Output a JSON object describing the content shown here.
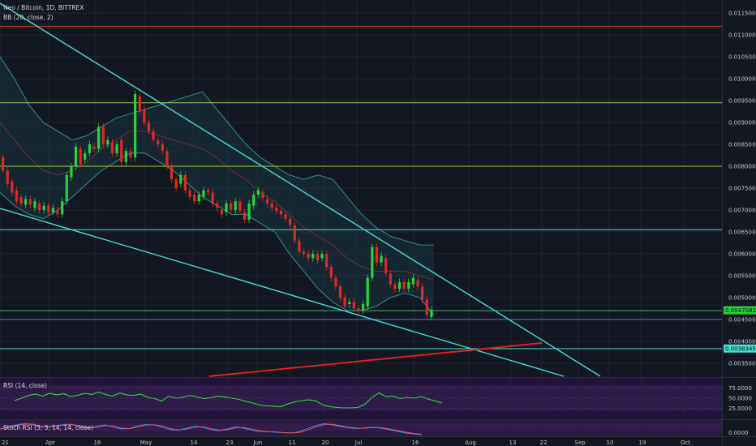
{
  "header": {
    "symbol": "Neo / Bitcoin, 1D, BITTREX",
    "bb": "BB (20, close, 2)",
    "rsi": "RSI (14, close)",
    "stoch": "Stoch RSI (3, 3, 14, 14, close)"
  },
  "chart_data": {
    "type": "candlestick",
    "price_axis": {
      "ticks": [
        "0.01150000",
        "0.01100000",
        "0.01050000",
        "0.01000000",
        "0.00950000",
        "0.00900000",
        "0.00850000",
        "0.00800000",
        "0.00750000",
        "0.00700000",
        "0.00650000",
        "0.00600000",
        "0.00550000",
        "0.00500000",
        "0.00450000",
        "0.00400000",
        "0.00350000"
      ],
      "range": [
        0.0032,
        0.0118
      ]
    },
    "last_price_label": "0.00470820",
    "support_label": "0.00383457",
    "rsi_axis": {
      "ticks": [
        "75.0000",
        "50.0000",
        "25.0000"
      ]
    },
    "stoch_axis": {
      "ticks": [
        "0.0000"
      ]
    },
    "x_axis_labels": [
      "21",
      "Apr",
      "16",
      "May",
      "14",
      "23",
      "Jun",
      "11",
      "20",
      "Jul",
      "16",
      "Aug",
      "13",
      "22",
      "Sep",
      "10",
      "19",
      "Oct"
    ],
    "horizontal_levels": [
      {
        "price": 0.0112,
        "color": "#e03030"
      },
      {
        "price": 0.00945,
        "color": "#9acd32"
      },
      {
        "price": 0.008,
        "color": "#9acd32"
      },
      {
        "price": 0.00655,
        "color": "#40e0d0"
      },
      {
        "price": 0.0047,
        "color": "#3cb371"
      },
      {
        "price": 0.0045,
        "color": "#4a78d8"
      },
      {
        "price": 0.00383,
        "color": "#40e0d0"
      }
    ],
    "candles": [
      [
        0.0082,
        0.0079
      ],
      [
        0.0079,
        0.0076
      ],
      [
        0.00765,
        0.0074
      ],
      [
        0.00745,
        0.0072
      ],
      [
        0.0073,
        0.00715
      ],
      [
        0.00712,
        0.00725
      ],
      [
        0.00725,
        0.00712
      ],
      [
        0.00705,
        0.0072
      ],
      [
        0.00715,
        0.007
      ],
      [
        0.007,
        0.0071
      ],
      [
        0.0071,
        0.00695
      ],
      [
        0.00695,
        0.00705
      ],
      [
        0.007,
        0.0069
      ],
      [
        0.0069,
        0.0072
      ],
      [
        0.0072,
        0.0078
      ],
      [
        0.00775,
        0.008
      ],
      [
        0.008,
        0.00845
      ],
      [
        0.0084,
        0.00805
      ],
      [
        0.00815,
        0.0083
      ],
      [
        0.0083,
        0.0085
      ],
      [
        0.00845,
        0.0084
      ],
      [
        0.0084,
        0.0089
      ],
      [
        0.0089,
        0.0085
      ],
      [
        0.0085,
        0.0086
      ],
      [
        0.00855,
        0.0083
      ],
      [
        0.0083,
        0.0085
      ],
      [
        0.0086,
        0.0081
      ],
      [
        0.0081,
        0.00835
      ],
      [
        0.00835,
        0.0082
      ],
      [
        0.0082,
        0.00965
      ],
      [
        0.0096,
        0.00925
      ],
      [
        0.0093,
        0.009
      ],
      [
        0.009,
        0.0088
      ],
      [
        0.0088,
        0.0086
      ],
      [
        0.0086,
        0.0085
      ],
      [
        0.0085,
        0.00835
      ],
      [
        0.00835,
        0.008
      ],
      [
        0.008,
        0.0077
      ],
      [
        0.0077,
        0.0075
      ],
      [
        0.0076,
        0.0078
      ],
      [
        0.0078,
        0.00745
      ],
      [
        0.00745,
        0.0073
      ],
      [
        0.00735,
        0.0072
      ],
      [
        0.0072,
        0.00735
      ],
      [
        0.0073,
        0.00745
      ],
      [
        0.00745,
        0.0074
      ],
      [
        0.0074,
        0.00715
      ],
      [
        0.00715,
        0.00705
      ],
      [
        0.007,
        0.0069
      ],
      [
        0.00695,
        0.00715
      ],
      [
        0.00715,
        0.007
      ],
      [
        0.007,
        0.0072
      ],
      [
        0.0072,
        0.00698
      ],
      [
        0.00695,
        0.00678
      ],
      [
        0.00678,
        0.00715
      ],
      [
        0.0071,
        0.00735
      ],
      [
        0.00735,
        0.00745
      ],
      [
        0.0074,
        0.00728
      ],
      [
        0.00725,
        0.00715
      ],
      [
        0.00715,
        0.00705
      ],
      [
        0.00705,
        0.00698
      ],
      [
        0.00698,
        0.0069
      ],
      [
        0.0069,
        0.0068
      ],
      [
        0.0068,
        0.00665
      ],
      [
        0.00665,
        0.0063
      ],
      [
        0.0063,
        0.00605
      ],
      [
        0.00605,
        0.006
      ],
      [
        0.006,
        0.0059
      ],
      [
        0.0059,
        0.006
      ],
      [
        0.006,
        0.00585
      ],
      [
        0.0059,
        0.006
      ],
      [
        0.006,
        0.0057
      ],
      [
        0.0057,
        0.00545
      ],
      [
        0.00545,
        0.00525
      ],
      [
        0.00525,
        0.005
      ],
      [
        0.005,
        0.0048
      ],
      [
        0.00485,
        0.0049
      ],
      [
        0.0049,
        0.00475
      ],
      [
        0.00475,
        0.0047
      ],
      [
        0.0047,
        0.00485
      ],
      [
        0.0048,
        0.00545
      ],
      [
        0.00545,
        0.00615
      ],
      [
        0.00615,
        0.0058
      ],
      [
        0.0058,
        0.00595
      ],
      [
        0.0059,
        0.00555
      ],
      [
        0.00555,
        0.0053
      ],
      [
        0.0053,
        0.0052
      ],
      [
        0.0052,
        0.00535
      ],
      [
        0.00535,
        0.0052
      ],
      [
        0.0052,
        0.00535
      ],
      [
        0.0053,
        0.00545
      ],
      [
        0.0054,
        0.00525
      ],
      [
        0.00525,
        0.00495
      ],
      [
        0.00495,
        0.0046
      ],
      [
        0.00455,
        0.00472
      ]
    ],
    "bb_upper": [
      0.0105,
      0.01,
      0.0094,
      0.009,
      0.0088,
      0.0086,
      0.0087,
      0.0089,
      0.0091,
      0.0092,
      0.0093,
      0.0094,
      0.0095,
      0.0096,
      0.0097,
      0.0093,
      0.0089,
      0.0085,
      0.0082,
      0.008,
      0.0078,
      0.0077,
      0.0078,
      0.0077,
      0.0073,
      0.0069,
      0.0066,
      0.0064,
      0.0063,
      0.0062,
      0.0062
    ],
    "bb_lower": [
      0.0074,
      0.0071,
      0.0069,
      0.0068,
      0.007,
      0.0073,
      0.0076,
      0.0079,
      0.0081,
      0.0083,
      0.0083,
      0.0081,
      0.0079,
      0.0076,
      0.0073,
      0.0071,
      0.0069,
      0.0069,
      0.0067,
      0.0065,
      0.006,
      0.0056,
      0.0052,
      0.0049,
      0.0047,
      0.0047,
      0.0048,
      0.005,
      0.0051,
      0.005,
      0.0046
    ],
    "bb_basis": [
      0.009,
      0.0086,
      0.0082,
      0.0079,
      0.0078,
      0.0079,
      0.0081,
      0.0084,
      0.0086,
      0.0088,
      0.0088,
      0.0087,
      0.0086,
      0.0085,
      0.0084,
      0.0082,
      0.0079,
      0.0077,
      0.0074,
      0.0072,
      0.0069,
      0.0066,
      0.0064,
      0.0062,
      0.0059,
      0.0057,
      0.0056,
      0.0056,
      0.0056,
      0.0055,
      0.0054
    ],
    "rsi": [
      44,
      50,
      57,
      60,
      55,
      62,
      58,
      61,
      54,
      57,
      62,
      59,
      65,
      59,
      55,
      63,
      58,
      57,
      60,
      52,
      49,
      43,
      55,
      50,
      52,
      57,
      53,
      49,
      51,
      55,
      53,
      50,
      47,
      42,
      38,
      33,
      31,
      30,
      29,
      36,
      41,
      44,
      46,
      43,
      33,
      29,
      27,
      26,
      26,
      27,
      35,
      52,
      63,
      54,
      55,
      49,
      52,
      50,
      54,
      48,
      43,
      38
    ],
    "stoch": [
      45,
      62,
      70,
      78,
      72,
      55,
      60,
      66,
      74,
      70,
      55,
      50,
      62,
      70,
      55,
      45,
      48,
      66,
      72,
      70,
      55,
      40,
      38,
      50,
      62,
      55,
      40,
      35,
      45,
      58,
      50,
      38,
      30,
      28,
      25,
      22,
      20,
      30,
      50,
      68,
      78,
      70,
      60,
      52,
      48,
      52,
      56,
      50,
      40,
      30,
      20,
      15,
      10
    ],
    "stoch_k_color": "#2196f3",
    "stoch_d_color": "#e65a5a",
    "trend_color": "#40e0d0",
    "channel_color": "#e02020",
    "up_color": "#26d43a",
    "down_color": "#e02828"
  }
}
